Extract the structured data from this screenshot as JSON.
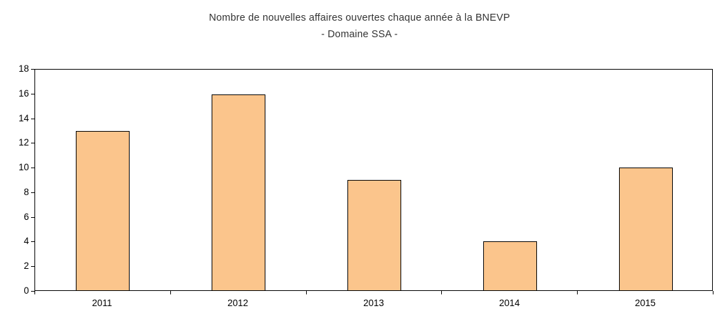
{
  "chart_data": {
    "type": "bar",
    "title": "Nombre de nouvelles affaires  ouvertes chaque année à la BNEVP",
    "subtitle": "- Domaine SSA -",
    "categories": [
      "2011",
      "2012",
      "2013",
      "2014",
      "2015"
    ],
    "values": [
      13,
      16,
      9,
      4,
      10
    ],
    "xlabel": "",
    "ylabel": "",
    "ylim": [
      0,
      18
    ],
    "ytick_step": 2,
    "grid": false,
    "legend": false,
    "bar_color": "#FBC58C",
    "bar_border_color": "#000000",
    "plot_border_color": "#000000",
    "background_color": "#FFFFFF"
  }
}
